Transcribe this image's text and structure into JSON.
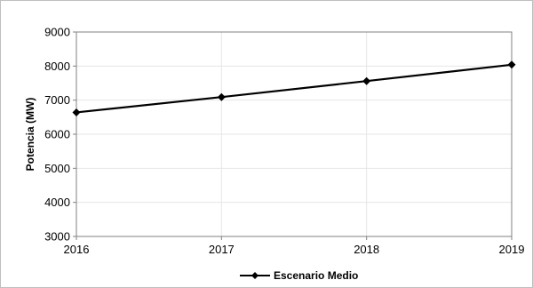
{
  "chart_data": {
    "type": "line",
    "title": "",
    "xlabel": "",
    "ylabel": "Potencia (MW)",
    "x": [
      "2016",
      "2017",
      "2018",
      "2019"
    ],
    "series": [
      {
        "name": "Escenario Medio",
        "values": [
          6640,
          7090,
          7560,
          8040
        ],
        "color": "#000000",
        "marker": "diamond"
      }
    ],
    "ylim": [
      3000,
      9000
    ],
    "yticks": [
      "3000",
      "4000",
      "5000",
      "6000",
      "7000",
      "8000",
      "9000"
    ],
    "grid": "vertical-and-horizontal-light",
    "legend_position": "bottom-center"
  }
}
